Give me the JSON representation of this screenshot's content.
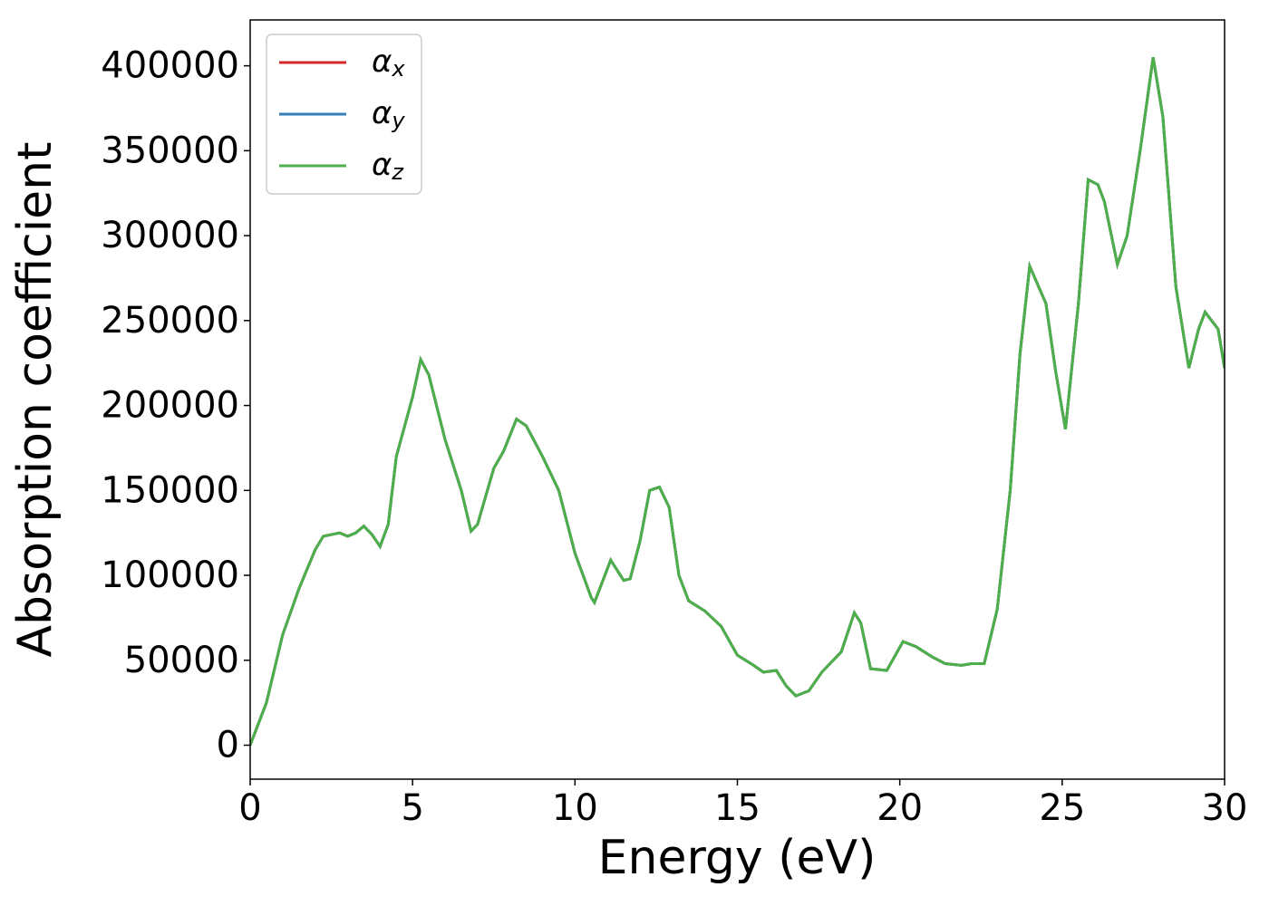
{
  "chart_data": {
    "type": "line",
    "xlabel": "Energy (eV)",
    "ylabel": "Absorption coefficient",
    "x": [
      0,
      0.5,
      1,
      1.5,
      2,
      2.25,
      2.5,
      2.75,
      3,
      3.25,
      3.5,
      3.75,
      4,
      4.25,
      4.5,
      5,
      5.25,
      5.5,
      6,
      6.5,
      6.8,
      7,
      7.5,
      7.8,
      8.2,
      8.5,
      9,
      9.5,
      10,
      10.5,
      10.6,
      11,
      11.1,
      11.5,
      11.7,
      12,
      12.3,
      12.6,
      12.9,
      13.2,
      13.5,
      14,
      14.5,
      15,
      15.5,
      15.8,
      16.2,
      16.5,
      16.8,
      17.2,
      17.6,
      18.2,
      18.6,
      18.8,
      19.1,
      19.6,
      20.1,
      20.5,
      21,
      21.4,
      21.9,
      22.2,
      22.6,
      23,
      23.4,
      23.7,
      24,
      24.5,
      24.8,
      25.1,
      25.5,
      25.8,
      26.1,
      26.3,
      26.7,
      27,
      27.4,
      27.8,
      28.1,
      28.5,
      28.9,
      29.2,
      29.4,
      29.8,
      30
    ],
    "series": [
      {
        "name": "αx",
        "color": "#d62728",
        "values": [
          0,
          25000,
          65000,
          92000,
          115000,
          123000,
          124000,
          125000,
          123000,
          125000,
          129000,
          124000,
          117000,
          130000,
          170000,
          205000,
          227000,
          218000,
          180000,
          150000,
          126000,
          130000,
          163000,
          173000,
          192000,
          188000,
          170000,
          150000,
          113000,
          87000,
          84000,
          104000,
          109000,
          97000,
          98000,
          120000,
          150000,
          152000,
          140000,
          100000,
          85000,
          79000,
          70000,
          53000,
          47000,
          43000,
          44000,
          35000,
          29000,
          32000,
          43000,
          55000,
          78000,
          72000,
          45000,
          44000,
          61000,
          58000,
          52000,
          48000,
          47000,
          48000,
          48000,
          80000,
          150000,
          230000,
          282000,
          260000,
          220000,
          186000,
          260000,
          333000,
          330000,
          320000,
          283000,
          300000,
          350000,
          405000,
          370000,
          270000,
          222000,
          245000,
          255000,
          245000,
          222000
        ]
      },
      {
        "name": "αy",
        "color": "#377eb8",
        "values": [
          0,
          25000,
          65000,
          92000,
          115000,
          123000,
          124000,
          125000,
          123000,
          125000,
          129000,
          124000,
          117000,
          130000,
          170000,
          205000,
          227000,
          218000,
          180000,
          150000,
          126000,
          130000,
          163000,
          173000,
          192000,
          188000,
          170000,
          150000,
          113000,
          87000,
          84000,
          104000,
          109000,
          97000,
          98000,
          120000,
          150000,
          152000,
          140000,
          100000,
          85000,
          79000,
          70000,
          53000,
          47000,
          43000,
          44000,
          35000,
          29000,
          32000,
          43000,
          55000,
          78000,
          72000,
          45000,
          44000,
          61000,
          58000,
          52000,
          48000,
          47000,
          48000,
          48000,
          80000,
          150000,
          230000,
          282000,
          260000,
          220000,
          186000,
          260000,
          333000,
          330000,
          320000,
          283000,
          300000,
          350000,
          405000,
          370000,
          270000,
          222000,
          245000,
          255000,
          245000,
          222000
        ]
      },
      {
        "name": "αz",
        "color": "#4daf4a",
        "values": [
          0,
          25000,
          65000,
          92000,
          115000,
          123000,
          124000,
          125000,
          123000,
          125000,
          129000,
          124000,
          117000,
          130000,
          170000,
          205000,
          227000,
          218000,
          180000,
          150000,
          126000,
          130000,
          163000,
          173000,
          192000,
          188000,
          170000,
          150000,
          113000,
          87000,
          84000,
          104000,
          109000,
          97000,
          98000,
          120000,
          150000,
          152000,
          140000,
          100000,
          85000,
          79000,
          70000,
          53000,
          47000,
          43000,
          44000,
          35000,
          29000,
          32000,
          43000,
          55000,
          78000,
          72000,
          45000,
          44000,
          61000,
          58000,
          52000,
          48000,
          47000,
          48000,
          48000,
          80000,
          150000,
          230000,
          282000,
          260000,
          220000,
          186000,
          260000,
          333000,
          330000,
          320000,
          283000,
          300000,
          350000,
          405000,
          370000,
          270000,
          222000,
          245000,
          255000,
          245000,
          222000
        ]
      }
    ],
    "xlim": [
      0,
      30
    ],
    "xticks": [
      0,
      5,
      10,
      15,
      20,
      25,
      30
    ],
    "ylim": [
      -20000,
      427000
    ],
    "yticks": [
      0,
      50000,
      100000,
      150000,
      200000,
      250000,
      300000,
      350000,
      400000
    ],
    "grid": false,
    "legend": "upper left"
  }
}
